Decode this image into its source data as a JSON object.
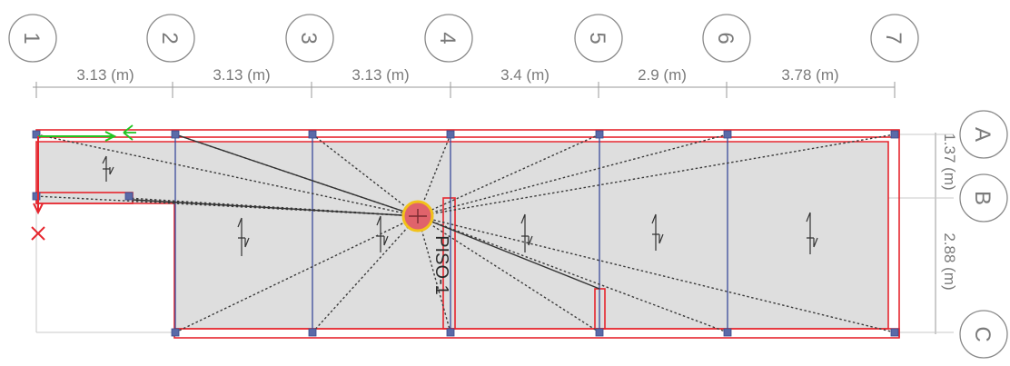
{
  "grid_columns": [
    "1",
    "2",
    "3",
    "4",
    "5",
    "6",
    "7"
  ],
  "grid_rows": [
    "A",
    "B",
    "C"
  ],
  "column_dimensions": [
    "3.13 (m)",
    "3.13 (m)",
    "3.13 (m)",
    "3.4 (m)",
    "2.9 (m)",
    "3.78 (m)"
  ],
  "row_dimensions": [
    "1.37 (m)",
    "2.88 (m)"
  ],
  "slab_label": "PISO-1",
  "colors": {
    "beam": "#e6262e",
    "column_line": "#3a4a9a",
    "slab": "#dedede",
    "axis_x": "#22c422",
    "axis_y": "#e6262e",
    "center_fill": "#e0636b",
    "center_ring": "#f2c21a"
  }
}
